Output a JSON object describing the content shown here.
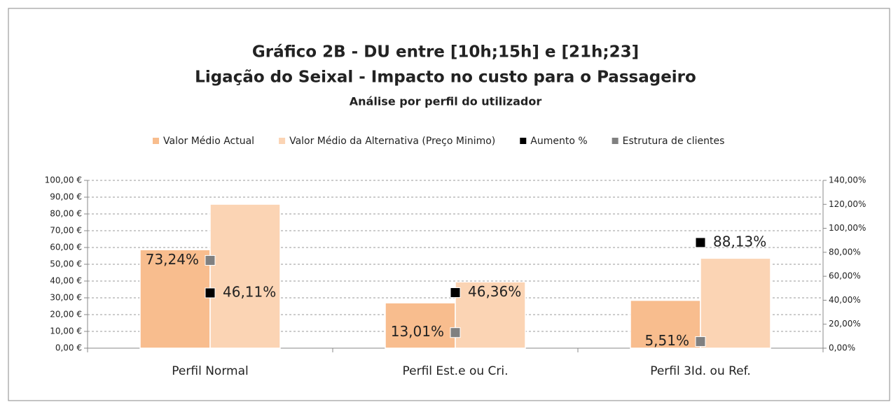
{
  "chart_data": {
    "type": "bar",
    "title": [
      "Gráfico 2B - DU entre [10h;15h] e [21h;23]",
      "Ligação do Seixal  - Impacto no custo para o Passageiro"
    ],
    "subtitle": "Análise por perfil do utilizador",
    "categories": [
      "Perfil Normal",
      "Perfil Est.e ou Cri.",
      "Perfil 3Id. ou Ref."
    ],
    "series": [
      {
        "name": "Valor Médio Actual",
        "color": "#f8bd8e",
        "values": [
          58.7,
          27.0,
          28.5
        ]
      },
      {
        "name": "Valor Médio da Alternativa (Preço Minimo)",
        "color": "#fbd4b4",
        "values": [
          85.8,
          39.5,
          53.6
        ]
      },
      {
        "name": "Aumento %",
        "color": "#000000",
        "type": "scatter",
        "axis": "y2",
        "values": [
          46.11,
          46.36,
          88.13
        ],
        "value_labels": [
          "46,11%",
          "46,36%",
          "88,13%"
        ]
      },
      {
        "name": "Estrutura de clientes",
        "color": "#808080",
        "type": "scatter",
        "axis": "y2",
        "values": [
          73.24,
          13.01,
          5.51
        ],
        "value_labels": [
          "73,24%",
          "13,01%",
          "5,51%"
        ]
      }
    ],
    "ylim": [
      0,
      100
    ],
    "yticks": [
      {
        "value": 0,
        "label": "0,00 €"
      },
      {
        "value": 10,
        "label": "10,00 €"
      },
      {
        "value": 20,
        "label": "20,00 €"
      },
      {
        "value": 30,
        "label": "30,00 €"
      },
      {
        "value": 40,
        "label": "40,00 €"
      },
      {
        "value": 50,
        "label": "50,00 €"
      },
      {
        "value": 60,
        "label": "60,00 €"
      },
      {
        "value": 70,
        "label": "70,00 €"
      },
      {
        "value": 80,
        "label": "80,00 €"
      },
      {
        "value": 90,
        "label": "90,00 €"
      },
      {
        "value": 100,
        "label": "100,00 €"
      }
    ],
    "y2lim": [
      0,
      140
    ],
    "y2ticks": [
      {
        "value": 0,
        "label": "0,00%"
      },
      {
        "value": 20,
        "label": "20,00%"
      },
      {
        "value": 40,
        "label": "40,00%"
      },
      {
        "value": 60,
        "label": "60,00%"
      },
      {
        "value": 80,
        "label": "80,00%"
      },
      {
        "value": 100,
        "label": "100,00%"
      },
      {
        "value": 120,
        "label": "120,00%"
      },
      {
        "value": 140,
        "label": "140,00%"
      }
    ],
    "grid": true,
    "legend": "top"
  }
}
